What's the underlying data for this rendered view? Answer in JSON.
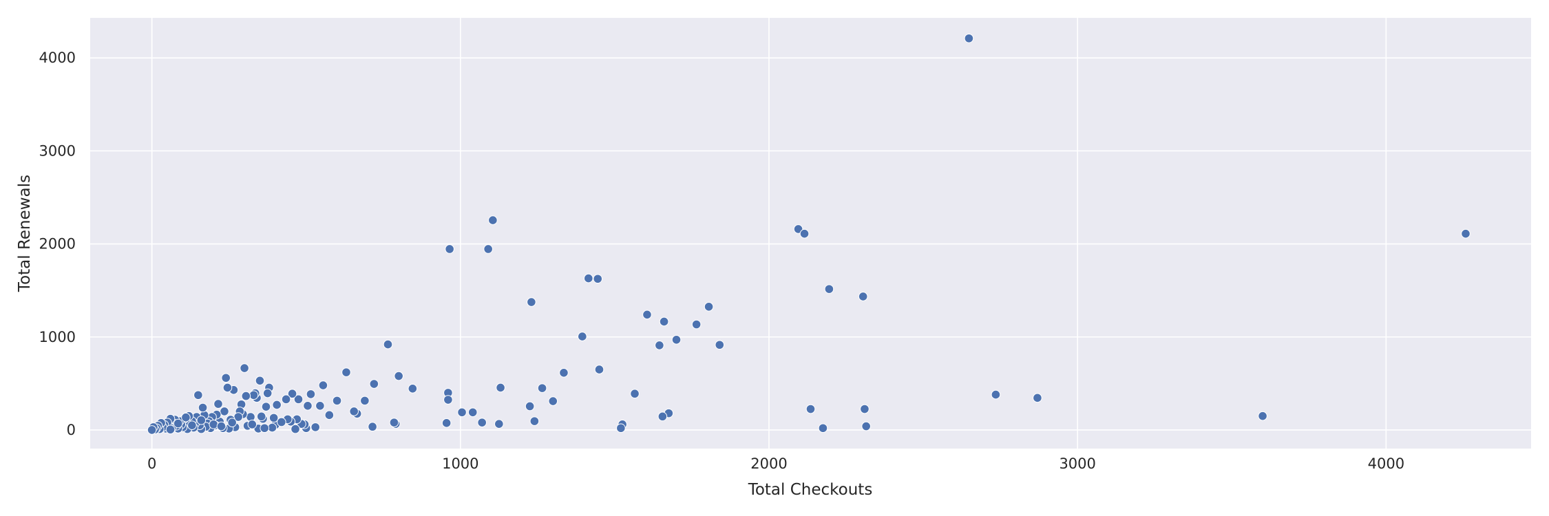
{
  "chart_data": {
    "type": "scatter",
    "title": "",
    "xlabel": "Total Checkouts",
    "ylabel": "Total Renewals",
    "xlim": [
      -200,
      4470
    ],
    "ylim": [
      -200,
      4430
    ],
    "xticks": [
      0,
      1000,
      2000,
      3000,
      4000
    ],
    "yticks": [
      0,
      1000,
      2000,
      3000,
      4000
    ],
    "grid": true,
    "legend": "none",
    "colors": {
      "background": "#eaeaf2",
      "grid": "#ffffff",
      "marker": "#4c72b0",
      "marker_edge": "#ffffff",
      "text": "#262626"
    },
    "series": [
      {
        "points": [
          [
            4258,
            2110
          ],
          [
            2648,
            4210
          ],
          [
            3600,
            150
          ],
          [
            2870,
            345
          ],
          [
            2735,
            380
          ],
          [
            2095,
            2160
          ],
          [
            2115,
            2110
          ],
          [
            2195,
            1515
          ],
          [
            2305,
            1435
          ],
          [
            2135,
            225
          ],
          [
            2310,
            225
          ],
          [
            2315,
            40
          ],
          [
            2175,
            20
          ],
          [
            1840,
            915
          ],
          [
            1805,
            1325
          ],
          [
            1765,
            1135
          ],
          [
            1700,
            970
          ],
          [
            1660,
            1165
          ],
          [
            1645,
            910
          ],
          [
            1605,
            1240
          ],
          [
            1675,
            180
          ],
          [
            1655,
            145
          ],
          [
            1565,
            390
          ],
          [
            1525,
            60
          ],
          [
            1520,
            20
          ],
          [
            1450,
            650
          ],
          [
            1445,
            1625
          ],
          [
            1415,
            1630
          ],
          [
            1395,
            1005
          ],
          [
            1335,
            615
          ],
          [
            1300,
            310
          ],
          [
            1265,
            450
          ],
          [
            1240,
            95
          ],
          [
            1230,
            1375
          ],
          [
            1225,
            255
          ],
          [
            1130,
            455
          ],
          [
            1125,
            65
          ],
          [
            1105,
            2255
          ],
          [
            1090,
            1945
          ],
          [
            1070,
            80
          ],
          [
            1040,
            190
          ],
          [
            1005,
            190
          ],
          [
            965,
            1945
          ],
          [
            960,
            400
          ],
          [
            960,
            325
          ],
          [
            955,
            75
          ],
          [
            845,
            445
          ],
          [
            800,
            580
          ],
          [
            790,
            65
          ],
          [
            785,
            80
          ],
          [
            765,
            920
          ],
          [
            720,
            495
          ],
          [
            715,
            35
          ],
          [
            690,
            315
          ],
          [
            665,
            175
          ],
          [
            655,
            200
          ],
          [
            630,
            620
          ],
          [
            600,
            315
          ],
          [
            575,
            160
          ],
          [
            555,
            480
          ],
          [
            545,
            260
          ],
          [
            530,
            30
          ],
          [
            515,
            385
          ],
          [
            505,
            260
          ],
          [
            500,
            20
          ],
          [
            495,
            60
          ],
          [
            485,
            65
          ],
          [
            475,
            330
          ],
          [
            470,
            115
          ],
          [
            465,
            10
          ],
          [
            455,
            390
          ],
          [
            450,
            90
          ],
          [
            440,
            115
          ],
          [
            435,
            330
          ],
          [
            405,
            270
          ],
          [
            400,
            55
          ],
          [
            395,
            130
          ],
          [
            390,
            25
          ],
          [
            380,
            455
          ],
          [
            375,
            395
          ],
          [
            370,
            250
          ],
          [
            360,
            120
          ],
          [
            355,
            145
          ],
          [
            350,
            530
          ],
          [
            345,
            15
          ],
          [
            340,
            345
          ],
          [
            335,
            395
          ],
          [
            330,
            375
          ],
          [
            320,
            140
          ],
          [
            310,
            45
          ],
          [
            305,
            365
          ],
          [
            300,
            665
          ],
          [
            295,
            170
          ],
          [
            290,
            275
          ],
          [
            285,
            200
          ],
          [
            280,
            140
          ],
          [
            270,
            30
          ],
          [
            265,
            430
          ],
          [
            255,
            110
          ],
          [
            250,
            15
          ],
          [
            245,
            455
          ],
          [
            240,
            560
          ],
          [
            235,
            200
          ],
          [
            230,
            20
          ],
          [
            220,
            90
          ],
          [
            215,
            280
          ],
          [
            210,
            165
          ],
          [
            205,
            50
          ],
          [
            195,
            140
          ],
          [
            190,
            20
          ],
          [
            185,
            95
          ],
          [
            180,
            70
          ],
          [
            175,
            35
          ],
          [
            170,
            160
          ],
          [
            165,
            240
          ],
          [
            160,
            10
          ],
          [
            155,
            50
          ],
          [
            150,
            375
          ],
          [
            148,
            115
          ],
          [
            145,
            140
          ],
          [
            140,
            70
          ],
          [
            135,
            25
          ],
          [
            130,
            95
          ],
          [
            125,
            45
          ],
          [
            120,
            150
          ],
          [
            115,
            10
          ],
          [
            110,
            85
          ],
          [
            105,
            120
          ],
          [
            100,
            30
          ],
          [
            95,
            60
          ],
          [
            90,
            95
          ],
          [
            85,
            15
          ],
          [
            80,
            45
          ],
          [
            75,
            110
          ],
          [
            70,
            70
          ],
          [
            65,
            25
          ],
          [
            60,
            120
          ],
          [
            55,
            40
          ],
          [
            50,
            80
          ],
          [
            45,
            15
          ],
          [
            40,
            55
          ],
          [
            35,
            30
          ],
          [
            30,
            75
          ],
          [
            25,
            10
          ],
          [
            20,
            45
          ],
          [
            15,
            20
          ],
          [
            10,
            5
          ],
          [
            5,
            30
          ],
          [
            0,
            0
          ],
          [
            200,
            60
          ],
          [
            225,
            40
          ],
          [
            260,
            80
          ],
          [
            325,
            60
          ],
          [
            365,
            20
          ],
          [
            420,
            85
          ],
          [
            160,
            105
          ],
          [
            130,
            50
          ],
          [
            85,
            70
          ],
          [
            60,
            5
          ],
          [
            110,
            135
          ]
        ]
      }
    ]
  }
}
